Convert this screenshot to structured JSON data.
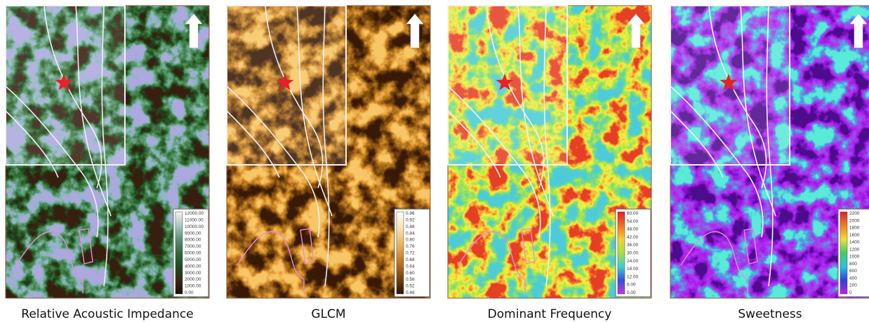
{
  "panels": [
    {
      "caption": "Relative Acoustic Impedance",
      "colorbar_labels": [
        "12000.00",
        "11000.00",
        "10000.00",
        "9000.00",
        "8000.00",
        "7000.00",
        "6000.00",
        "5000.00",
        "4000.00",
        "3000.00",
        "2000.00",
        "1000.00",
        "0.00"
      ]
    },
    {
      "caption": "GLCM",
      "colorbar_labels": [
        "0.96",
        "0.92",
        "0.88",
        "0.84",
        "0.80",
        "0.76",
        "0.72",
        "0.68",
        "0.64",
        "0.60",
        "0.56",
        "0.52",
        "0.48"
      ]
    },
    {
      "caption": "Dominant Frequency",
      "colorbar_labels": [
        "60.00",
        "54.00",
        "48.00",
        "42.00",
        "36.00",
        "30.00",
        "24.00",
        "18.00",
        "12.00",
        "6.00",
        "0.00"
      ]
    },
    {
      "caption": "Sweetness",
      "colorbar_labels": [
        "2200",
        "2000",
        "1800",
        "1600",
        "1400",
        "1200",
        "1000",
        "800",
        "600",
        "400",
        "200",
        "0"
      ]
    }
  ]
}
